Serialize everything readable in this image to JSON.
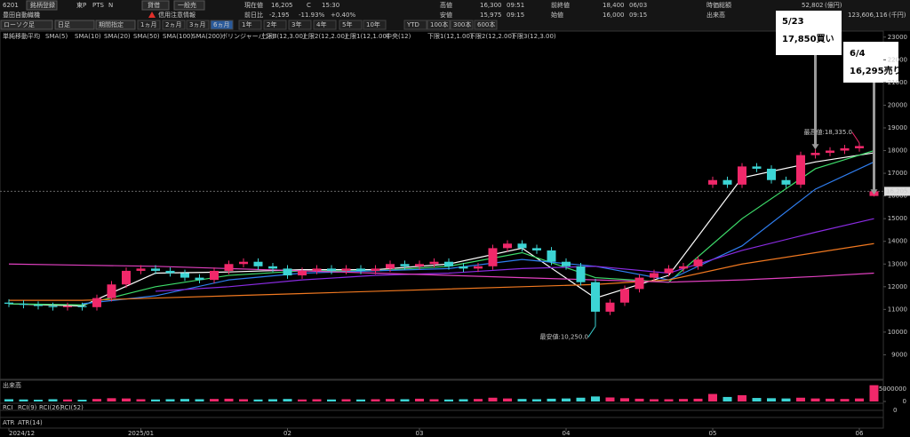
{
  "toolbar": {
    "code": "6201",
    "register": "銘柄登録",
    "company": "豊田自動織機",
    "market": "東P",
    "pts": "PTS",
    "badge_n": "N",
    "lending": "貸借",
    "general_short": "一般売",
    "alert": "信用注意情報",
    "chart_style": "ローソク足",
    "interval": "日足",
    "period_mode": "期間指定",
    "periods": [
      "1ヵ月",
      "2ヵ月",
      "3ヵ月",
      "6ヵ月",
      "1年",
      "2年",
      "3年",
      "4年",
      "5年",
      "10年",
      "YTD",
      "100本",
      "300本",
      "600本"
    ]
  },
  "quote": {
    "price_label": "現在値",
    "price": "16,205",
    "price_flag": "C",
    "price_time": "15:30",
    "change_label": "前日比",
    "change": "-2,195",
    "change_pct": "-11.93%",
    "change_extra": "+0.40%",
    "high_label": "高値",
    "high": "16,300",
    "high_time": "09:51",
    "low_label": "安値",
    "low": "15,975",
    "low_time": "09:15",
    "prev_label": "前終値",
    "prev": "18,400",
    "prev_date": "06/03",
    "open_label": "始値",
    "open": "16,000",
    "open_time": "09:15",
    "cap_label": "時価総額",
    "cap": "52,802",
    "cap_unit": "(億円)",
    "turnover_label": "出来高",
    "turnover": "123,606,116",
    "turnover_unit": "(千円)"
  },
  "indicators": {
    "ma_title": "単純移動平均",
    "bollinger": "ボリンジャーバンド",
    "bands": [
      "上限3(12,3.00)",
      "上限2(12,2.00)",
      "上限1(12,1.00)",
      "中央(12)",
      "下限1(12,1.00)",
      "下限2(12,2.00)",
      "下限3(12,3.00)"
    ]
  },
  "chart_data": {
    "type": "candlestick",
    "categories": [
      "2024/12",
      null,
      null,
      null,
      null,
      null,
      null,
      null,
      null,
      "2025/01",
      null,
      null,
      null,
      null,
      null,
      null,
      null,
      null,
      null,
      "02",
      null,
      null,
      null,
      null,
      null,
      null,
      null,
      null,
      "03",
      null,
      null,
      null,
      null,
      null,
      null,
      null,
      null,
      null,
      "04",
      null,
      null,
      null,
      null,
      null,
      null,
      null,
      null,
      null,
      "05",
      null,
      null,
      null,
      null,
      null,
      null,
      null,
      null,
      null,
      "06",
      null
    ],
    "open": [
      11300,
      11250,
      11200,
      11150,
      11100,
      11150,
      11100,
      11500,
      12100,
      12700,
      12800,
      12700,
      12600,
      12400,
      12300,
      12700,
      13000,
      13100,
      12900,
      12800,
      12500,
      12700,
      12800,
      12700,
      12800,
      12700,
      12800,
      13000,
      12900,
      13000,
      13100,
      12900,
      12800,
      12900,
      13700,
      13900,
      13700,
      13600,
      13100,
      12900,
      12200,
      10900,
      11300,
      11900,
      12400,
      12600,
      12800,
      12900,
      16500,
      16700,
      16500,
      17300,
      17200,
      16700,
      16500,
      17800,
      17900,
      18000,
      18100,
      16000
    ],
    "high": [
      11450,
      11400,
      11350,
      11300,
      11300,
      11300,
      11650,
      12250,
      12850,
      12950,
      12950,
      12850,
      12750,
      12550,
      12850,
      13150,
      13250,
      13250,
      13050,
      12950,
      12850,
      12950,
      12950,
      12950,
      12950,
      12950,
      13150,
      13150,
      13150,
      13250,
      13250,
      13050,
      13050,
      13850,
      14050,
      14050,
      13850,
      13750,
      13250,
      13050,
      12350,
      11450,
      12050,
      12550,
      12750,
      12950,
      13050,
      13350,
      16850,
      16850,
      17450,
      17450,
      17350,
      16850,
      17950,
      18050,
      18150,
      18250,
      18335,
      16300
    ],
    "low": [
      11100,
      11050,
      11000,
      10950,
      10950,
      10950,
      10950,
      11350,
      11950,
      12550,
      12550,
      12450,
      12250,
      12150,
      12150,
      12550,
      12850,
      12750,
      12650,
      12350,
      12350,
      12550,
      12550,
      12550,
      12550,
      12550,
      12650,
      12750,
      12750,
      12850,
      12750,
      12650,
      12650,
      12750,
      13550,
      13550,
      13450,
      12950,
      12750,
      12050,
      10250,
      10750,
      11150,
      11750,
      12250,
      12450,
      12650,
      12750,
      16350,
      16350,
      16350,
      17050,
      16550,
      16350,
      16350,
      17650,
      17750,
      17850,
      17950,
      15975
    ],
    "close": [
      11250,
      11200,
      11150,
      11100,
      11150,
      11100,
      11500,
      12100,
      12700,
      12800,
      12700,
      12600,
      12400,
      12300,
      12700,
      13000,
      13100,
      12900,
      12800,
      12500,
      12700,
      12800,
      12700,
      12800,
      12700,
      12800,
      13000,
      12900,
      13000,
      13100,
      12900,
      12800,
      12900,
      13700,
      13900,
      13700,
      13600,
      13100,
      12900,
      12200,
      10900,
      11300,
      11900,
      12400,
      12600,
      12800,
      12900,
      13200,
      16700,
      16500,
      17300,
      17200,
      16700,
      16500,
      17800,
      17900,
      18000,
      18100,
      18200,
      16205
    ],
    "up_color": "#f0286a",
    "down_color": "#3cd4d4",
    "ylim": [
      8000,
      23070
    ],
    "yticks": [
      9000,
      10000,
      11000,
      12000,
      13000,
      14000,
      15000,
      16000,
      17000,
      18000,
      19000,
      20000,
      21000,
      22000,
      23000
    ],
    "series": [
      {
        "name": "SMA(5)",
        "color": "#ffffff",
        "x": [
          0,
          5,
          10,
          15,
          20,
          25,
          30,
          35,
          40,
          45,
          50,
          55,
          59
        ],
        "values": [
          11250,
          11150,
          12600,
          12650,
          12750,
          12750,
          13000,
          13700,
          11500,
          12500,
          16800,
          17500,
          17900
        ]
      },
      {
        "name": "SMA(10)",
        "color": "#3ddc6a",
        "x": [
          0,
          5,
          10,
          15,
          20,
          25,
          30,
          35,
          40,
          45,
          50,
          55,
          59
        ],
        "values": [
          11250,
          11200,
          12000,
          12500,
          12700,
          12700,
          12900,
          13500,
          12400,
          12200,
          15000,
          17200,
          18000
        ]
      },
      {
        "name": "SMA(20)",
        "color": "#2f7ef0",
        "x": [
          0,
          5,
          10,
          15,
          20,
          25,
          30,
          35,
          40,
          45,
          50,
          55,
          59
        ],
        "values": [
          null,
          11250,
          11600,
          12300,
          12600,
          12700,
          12800,
          13200,
          12900,
          12300,
          13800,
          16300,
          17500
        ]
      },
      {
        "name": "SMA(50)",
        "color": "#8a2be2",
        "x": [
          0,
          5,
          10,
          15,
          20,
          25,
          30,
          35,
          40,
          45,
          50,
          55,
          59
        ],
        "values": [
          null,
          null,
          11800,
          12000,
          12300,
          12500,
          12600,
          12800,
          12900,
          12600,
          13600,
          14400,
          15000
        ]
      },
      {
        "name": "SMA(100)",
        "color": "#f07820",
        "x": [
          0,
          5,
          10,
          15,
          20,
          25,
          30,
          35,
          40,
          45,
          50,
          55,
          59
        ],
        "values": [
          11400,
          11400,
          11500,
          11600,
          11700,
          11800,
          11900,
          12000,
          12100,
          12300,
          13000,
          13500,
          13900
        ]
      },
      {
        "name": "SMA(200)",
        "color": "#e040c0",
        "x": [
          0,
          5,
          10,
          15,
          20,
          25,
          30,
          35,
          40,
          45,
          50,
          55,
          59
        ],
        "values": [
          13000,
          12950,
          12900,
          12800,
          12700,
          12600,
          12500,
          12400,
          12300,
          12200,
          12300,
          12450,
          12600
        ]
      }
    ],
    "max_label": "最高値:18,335.0",
    "min_label": "最安値:10,250.0",
    "last_price": {
      "value": 16205,
      "label": "16,205.0"
    },
    "trades": [
      {
        "date": "5/23",
        "text": "17,850買い"
      },
      {
        "date": "6/4",
        "text": "16,295売り"
      }
    ],
    "volume": {
      "label": "出来高",
      "ylim": [
        0,
        7800000
      ],
      "yticks": [
        0,
        5000000
      ],
      "values": [
        900000,
        800000,
        700000,
        900000,
        800000,
        700000,
        1000000,
        1300000,
        1200000,
        900000,
        800000,
        900000,
        1000000,
        900000,
        1000000,
        1100000,
        900000,
        800000,
        900000,
        1000000,
        800000,
        900000,
        800000,
        900000,
        800000,
        900000,
        1000000,
        900000,
        1100000,
        900000,
        800000,
        900000,
        1000000,
        1500000,
        1200000,
        1000000,
        900000,
        1100000,
        1200000,
        1500000,
        2000000,
        1600000,
        1300000,
        1100000,
        900000,
        900000,
        1000000,
        1100000,
        3000000,
        1800000,
        2500000,
        1400000,
        1300000,
        1200000,
        1500000,
        1200000,
        1100000,
        1000000,
        1200000,
        6500000
      ]
    },
    "rci": {
      "label": "RCI",
      "names": [
        "RCI(9)",
        "RCI(26)",
        "RCI(52)"
      ],
      "ylim": [
        -100,
        100
      ],
      "yticks": [
        0
      ]
    },
    "atr": {
      "label": "ATR",
      "names": [
        "ATR(14)"
      ]
    }
  }
}
